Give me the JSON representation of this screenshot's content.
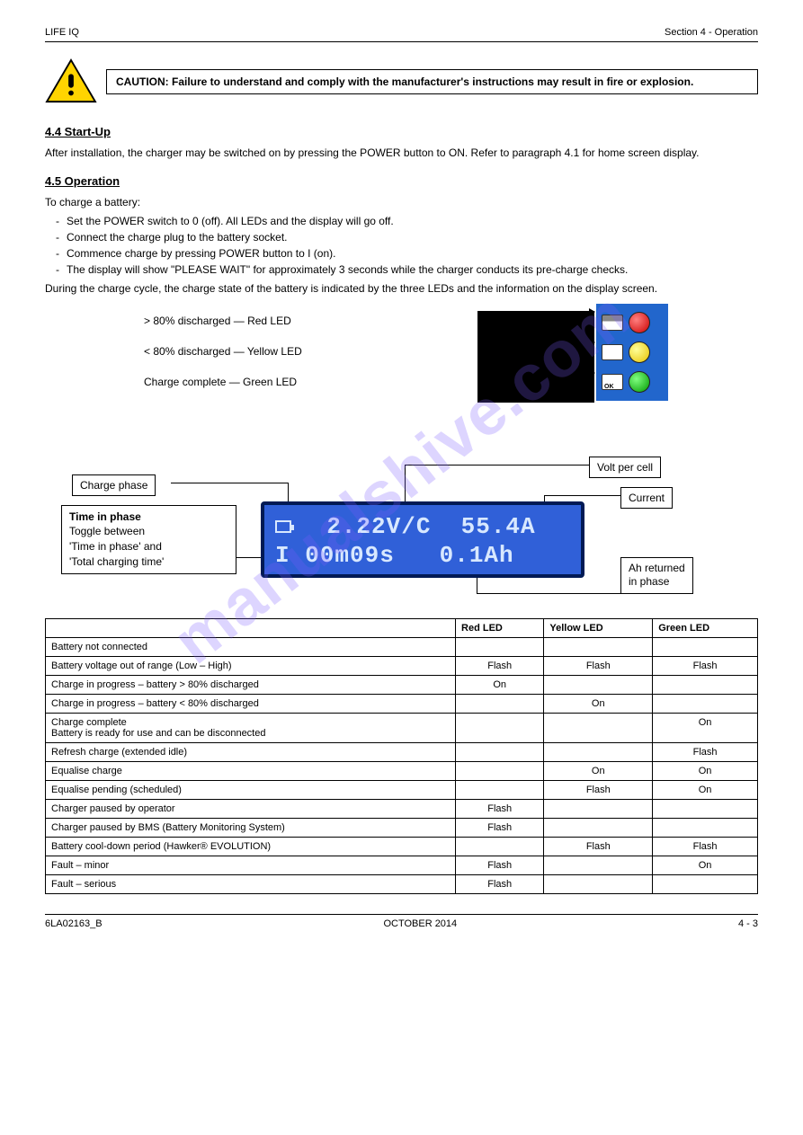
{
  "header": {
    "left": "LIFE IQ",
    "right": "Section 4 - Operation"
  },
  "watermark": "manualshive.com",
  "caution": "CAUTION: Failure to understand and comply with the manufacturer's instructions may result in fire or explosion.",
  "section1": {
    "title": "4.4  Start-Up",
    "para": "After installation, the charger may be switched on by pressing the POWER button to ON. Refer to paragraph 4.1 for home screen display."
  },
  "section2": {
    "title": "4.5  Operation",
    "lead": "To charge a battery:",
    "b1": "Set the POWER switch to 0 (off). All LEDs and the display will go off.",
    "b2": "Connect the charge plug to the battery socket.",
    "b3": "Commence charge by pressing POWER button to I (on).",
    "b4": "The display will show \"PLEASE WAIT\" for approximately 3 seconds while the charger conducts its pre-charge checks.",
    "para2": "During the charge cycle, the charge state of the battery is indicated by the three LEDs and the information on the display screen."
  },
  "led": {
    "row1": "> 80% discharged — Red LED",
    "row2": "< 80% discharged — Yellow LED",
    "row3": "Charge complete — Green LED"
  },
  "lcd": {
    "line1": "  2.22V/C  55.4A",
    "line2": "I 00m09s   0.1Ah"
  },
  "callouts": {
    "charge_phase": "Charge phase",
    "time_in_phase_t": "Time in phase",
    "time_in_phase_b1": "Toggle between",
    "time_in_phase_b2": "'Time in phase' and",
    "time_in_phase_b3": "'Total charging time'",
    "volts_per_cell": "Volt per cell",
    "current": "Current",
    "ah_returned_t": "Ah returned",
    "ah_returned_b": "in phase"
  },
  "table": {
    "headers": [
      "",
      "Red LED",
      "Yellow LED",
      "Green LED"
    ],
    "rows": [
      [
        "Battery not connected",
        "",
        "",
        ""
      ],
      [
        "Battery voltage out of range (Low – High)",
        "Flash",
        "Flash",
        "Flash"
      ],
      [
        "Charge in progress – battery > 80% discharged",
        "On",
        "",
        ""
      ],
      [
        "Charge in progress – battery < 80% discharged",
        "",
        "On",
        ""
      ],
      [
        "Charge complete\nBattery is ready for use and can be disconnected",
        "",
        "",
        "On"
      ],
      [
        "Refresh charge (extended idle)",
        "",
        "",
        "Flash"
      ],
      [
        "Equalise charge",
        "",
        "On",
        "On"
      ],
      [
        "Equalise pending (scheduled)",
        "",
        "Flash",
        "On"
      ],
      [
        "Charger paused by operator",
        "Flash",
        "",
        ""
      ],
      [
        "Charger paused by BMS (Battery Monitoring System)",
        "Flash",
        "",
        ""
      ],
      [
        "Battery cool-down period (Hawker® EVOLUTION)",
        "",
        "Flash",
        "Flash"
      ],
      [
        "Fault – minor",
        "Flash",
        "",
        "On"
      ],
      [
        "Fault – serious",
        "Flash",
        "",
        ""
      ]
    ]
  },
  "footer": {
    "left": "6LA02163_B",
    "center": "OCTOBER 2014",
    "right": "4 - 3"
  },
  "colors": {
    "lcd_bg": "#3060d8",
    "lcd_border": "#001a55",
    "lcd_text": "#d8e8ff",
    "panel_bg": "#2266cc",
    "led_red": "#cc0000",
    "led_yellow": "#e6c200",
    "led_green": "#009900",
    "watermark": "#7c5cff"
  }
}
